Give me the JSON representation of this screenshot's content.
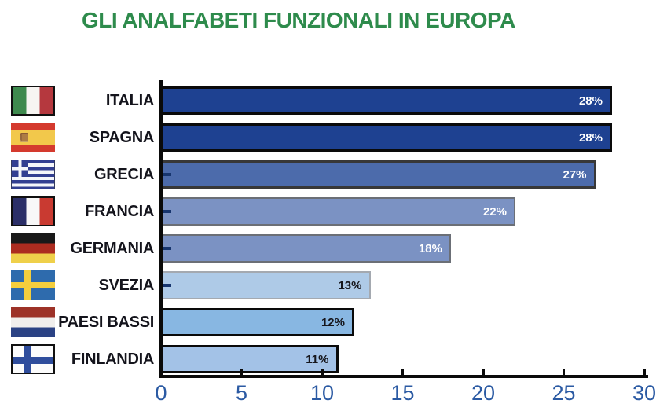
{
  "title": "GLI ANALFABETI FUNZIONALI IN EUROPA",
  "colors": {
    "title_green": "#2e8b4c",
    "axis_number_blue": "#2b5aa3",
    "axis_line_black": "#0a0a0a",
    "category_tick_navy": "#17356e"
  },
  "chart_data": {
    "type": "bar",
    "orientation": "horizontal",
    "title": "GLI ANALFABETI FUNZIONALI IN EUROPA",
    "categories": [
      "ITALIA",
      "SPAGNA",
      "GRECIA",
      "FRANCIA",
      "GERMANIA",
      "SVEZIA",
      "PAESI BASSI",
      "FINLANDIA"
    ],
    "values": [
      28,
      28,
      27,
      22,
      18,
      13,
      12,
      11
    ],
    "value_labels": [
      "28%",
      "28%",
      "27%",
      "22%",
      "18%",
      "13%",
      "12%",
      "11%"
    ],
    "xlabel": "",
    "ylabel": "",
    "xlim": [
      0,
      30
    ],
    "x_ticks": [
      0,
      5,
      10,
      15,
      20,
      25,
      30
    ],
    "grid": false,
    "legend": false
  },
  "rows": [
    {
      "label": "ITALIA",
      "flag": "italy",
      "value": 28,
      "value_label": "28%",
      "bar_color": "#1e4191",
      "border_color": "#0a0a0a",
      "border_px": 3,
      "value_text_color": "#ffffff",
      "category_tick": false
    },
    {
      "label": "SPAGNA",
      "flag": "spain",
      "value": 28,
      "value_label": "28%",
      "bar_color": "#1e4191",
      "border_color": "#0a0a0a",
      "border_px": 3,
      "value_text_color": "#ffffff",
      "category_tick": false
    },
    {
      "label": "GRECIA",
      "flag": "greece",
      "value": 27,
      "value_label": "27%",
      "bar_color": "#4c6bab",
      "border_color": "#383838",
      "border_px": 3,
      "value_text_color": "#ffffff",
      "category_tick": true
    },
    {
      "label": "FRANCIA",
      "flag": "france",
      "value": 22,
      "value_label": "22%",
      "bar_color": "#7b92c3",
      "border_color": "#6b6f76",
      "border_px": 2.5,
      "value_text_color": "#ffffff",
      "category_tick": true
    },
    {
      "label": "GERMANIA",
      "flag": "germany",
      "value": 18,
      "value_label": "18%",
      "bar_color": "#7b92c3",
      "border_color": "#6b6f76",
      "border_px": 2.5,
      "value_text_color": "#ffffff",
      "category_tick": true
    },
    {
      "label": "SVEZIA",
      "flag": "sweden",
      "value": 13,
      "value_label": "13%",
      "bar_color": "#aecae7",
      "border_color": "#a4a9b0",
      "border_px": 2.5,
      "value_text_color": "#16161c",
      "category_tick": true
    },
    {
      "label": "PAESI BASSI",
      "flag": "netherlands",
      "value": 12,
      "value_label": "12%",
      "bar_color": "#88b7e2",
      "border_color": "#0a0a0a",
      "border_px": 3,
      "value_text_color": "#16161c",
      "category_tick": false
    },
    {
      "label": "FINLANDIA",
      "flag": "finland",
      "value": 11,
      "value_label": "11%",
      "bar_color": "#a3c2e7",
      "border_color": "#0a0a0a",
      "border_px": 3,
      "value_text_color": "#16161c",
      "category_tick": false
    }
  ]
}
